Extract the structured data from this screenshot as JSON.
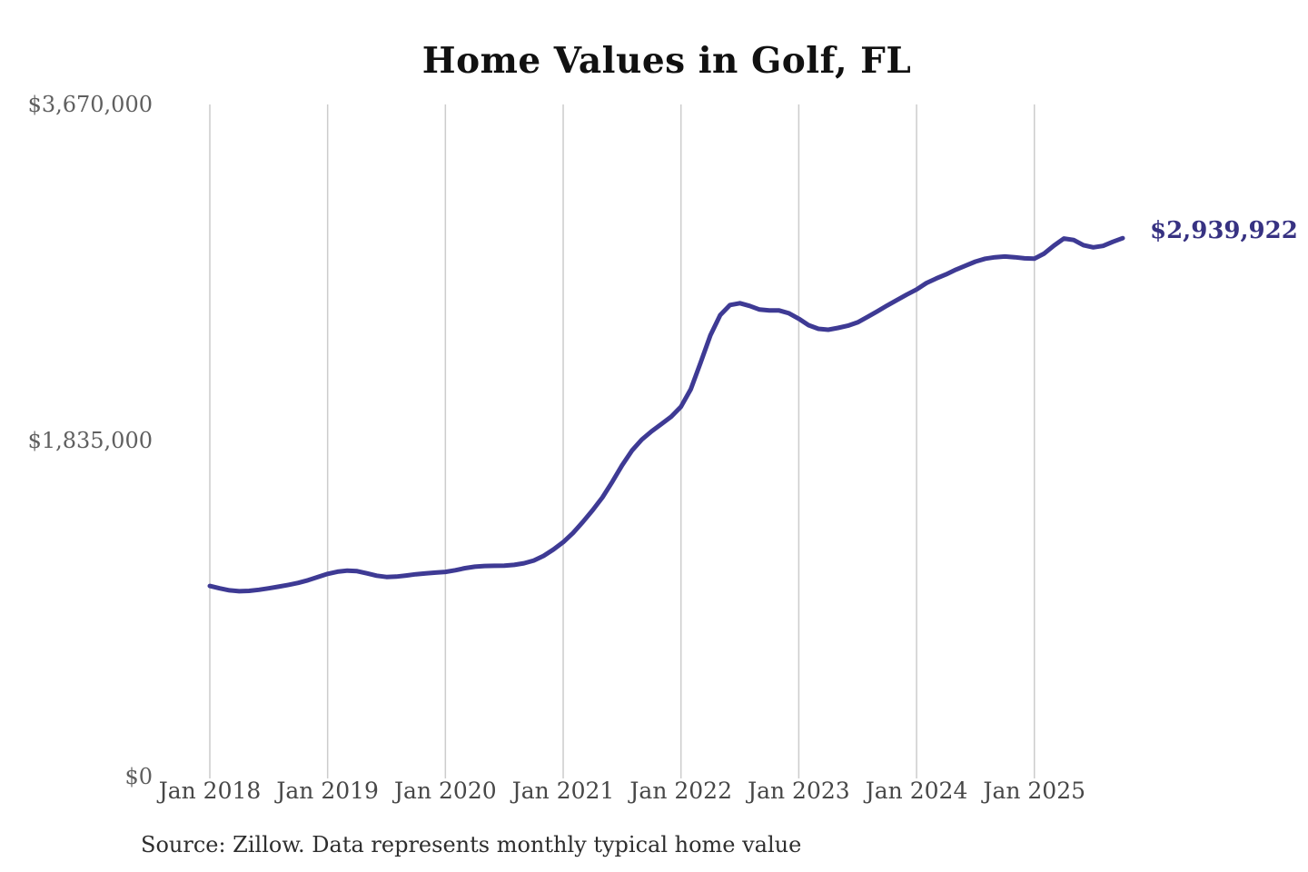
{
  "chart": {
    "title": "Home Values in Golf, FL",
    "current_value_label": "$2,939,922",
    "source_note": "Source: Zillow. Data represents monthly typical home value",
    "colors": {
      "line": "#3e3a94",
      "value_label": "#373282",
      "grid": "#cccccc",
      "background": "#ffffff"
    }
  },
  "chart_data": {
    "type": "line",
    "title": "Home Values in Golf, FL",
    "series_name": "Typical home value (monthly, Zillow)",
    "grid": "vertical-only",
    "legend": "none",
    "ylim": [
      0,
      3670000
    ],
    "yticks": [
      {
        "label": "$0",
        "value": 0
      },
      {
        "label": "$1,835,000",
        "value": 1835000
      },
      {
        "label": "$3,670,000",
        "value": 3670000
      }
    ],
    "xticks": [
      {
        "label": "Jan 2018",
        "month_index": 0
      },
      {
        "label": "Jan 2019",
        "month_index": 12
      },
      {
        "label": "Jan 2020",
        "month_index": 24
      },
      {
        "label": "Jan 2021",
        "month_index": 36
      },
      {
        "label": "Jan 2022",
        "month_index": 48
      },
      {
        "label": "Jan 2023",
        "month_index": 60
      },
      {
        "label": "Jan 2024",
        "month_index": 72
      },
      {
        "label": "Jan 2025",
        "month_index": 84
      }
    ],
    "x": [
      "Jan 2018",
      "Feb 2018",
      "Mar 2018",
      "Apr 2018",
      "May 2018",
      "Jun 2018",
      "Jul 2018",
      "Aug 2018",
      "Sep 2018",
      "Oct 2018",
      "Nov 2018",
      "Dec 2018",
      "Jan 2019",
      "Feb 2019",
      "Mar 2019",
      "Apr 2019",
      "May 2019",
      "Jun 2019",
      "Jul 2019",
      "Aug 2019",
      "Sep 2019",
      "Oct 2019",
      "Nov 2019",
      "Dec 2019",
      "Jan 2020",
      "Feb 2020",
      "Mar 2020",
      "Apr 2020",
      "May 2020",
      "Jun 2020",
      "Jul 2020",
      "Aug 2020",
      "Sep 2020",
      "Oct 2020",
      "Nov 2020",
      "Dec 2020",
      "Jan 2021",
      "Feb 2021",
      "Mar 2021",
      "Apr 2021",
      "May 2021",
      "Jun 2021",
      "Jul 2021",
      "Aug 2021",
      "Sep 2021",
      "Oct 2021",
      "Nov 2021",
      "Dec 2021",
      "Jan 2022",
      "Feb 2022",
      "Mar 2022",
      "Apr 2022",
      "May 2022",
      "Jun 2022",
      "Jul 2022",
      "Aug 2022",
      "Sep 2022",
      "Oct 2022",
      "Nov 2022",
      "Dec 2022",
      "Jan 2023",
      "Feb 2023",
      "Mar 2023",
      "Apr 2023",
      "May 2023",
      "Jun 2023",
      "Jul 2023",
      "Aug 2023",
      "Sep 2023",
      "Oct 2023",
      "Nov 2023",
      "Dec 2023",
      "Jan 2024",
      "Feb 2024",
      "Mar 2024",
      "Apr 2024",
      "May 2024",
      "Jun 2024",
      "Jul 2024",
      "Aug 2024",
      "Sep 2024",
      "Oct 2024",
      "Nov 2024",
      "Dec 2024",
      "Jan 2025",
      "Feb 2025",
      "Mar 2025",
      "Apr 2025",
      "May 2025",
      "Jun 2025",
      "Jul 2025",
      "Aug 2025",
      "Sep 2025",
      "Oct 2025"
    ],
    "values": [
      1041000,
      1028000,
      1017000,
      1012000,
      1014000,
      1020000,
      1028000,
      1037000,
      1047000,
      1058000,
      1072000,
      1090000,
      1107000,
      1119000,
      1125000,
      1122000,
      1110000,
      1097000,
      1090000,
      1092000,
      1098000,
      1105000,
      1110000,
      1114000,
      1118000,
      1127000,
      1138000,
      1146000,
      1150000,
      1151000,
      1152000,
      1156000,
      1165000,
      1180000,
      1205000,
      1240000,
      1280000,
      1330000,
      1390000,
      1455000,
      1525000,
      1610000,
      1700000,
      1780000,
      1840000,
      1885000,
      1925000,
      1965000,
      2020000,
      2115000,
      2260000,
      2410000,
      2520000,
      2575000,
      2585000,
      2570000,
      2550000,
      2545000,
      2545000,
      2530000,
      2500000,
      2465000,
      2445000,
      2440000,
      2450000,
      2462000,
      2480000,
      2510000,
      2540000,
      2572000,
      2602000,
      2632000,
      2660000,
      2695000,
      2720000,
      2742000,
      2768000,
      2790000,
      2812000,
      2828000,
      2836000,
      2840000,
      2836000,
      2830000,
      2828000,
      2856000,
      2900000,
      2938000,
      2930000,
      2902000,
      2890000,
      2898000,
      2920000,
      2939922
    ],
    "annotation": {
      "text": "$2,939,922",
      "value": 2939922,
      "position": "line-end"
    },
    "source": "Source: Zillow. Data represents monthly typical home value"
  }
}
